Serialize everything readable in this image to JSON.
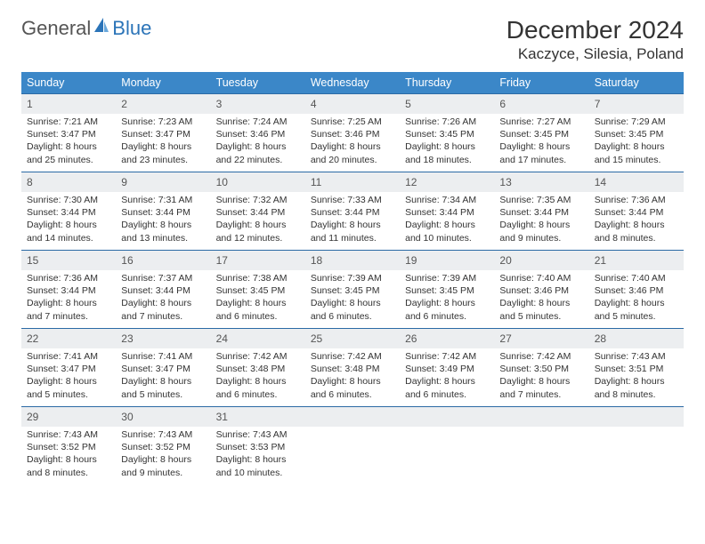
{
  "logo": {
    "general": "General",
    "blue": "Blue",
    "accent_color": "#2b74b8",
    "text_color": "#555555"
  },
  "header": {
    "title": "December 2024",
    "location": "Kaczyce, Silesia, Poland"
  },
  "colors": {
    "header_bg": "#3b87c8",
    "header_text": "#ffffff",
    "daynum_bg": "#eceef0",
    "daynum_border": "#2b6aa5",
    "body_text": "#333333",
    "page_bg": "#ffffff"
  },
  "weekdays": [
    "Sunday",
    "Monday",
    "Tuesday",
    "Wednesday",
    "Thursday",
    "Friday",
    "Saturday"
  ],
  "weeks": [
    [
      {
        "n": "1",
        "sunrise": "Sunrise: 7:21 AM",
        "sunset": "Sunset: 3:47 PM",
        "daylight1": "Daylight: 8 hours",
        "daylight2": "and 25 minutes."
      },
      {
        "n": "2",
        "sunrise": "Sunrise: 7:23 AM",
        "sunset": "Sunset: 3:47 PM",
        "daylight1": "Daylight: 8 hours",
        "daylight2": "and 23 minutes."
      },
      {
        "n": "3",
        "sunrise": "Sunrise: 7:24 AM",
        "sunset": "Sunset: 3:46 PM",
        "daylight1": "Daylight: 8 hours",
        "daylight2": "and 22 minutes."
      },
      {
        "n": "4",
        "sunrise": "Sunrise: 7:25 AM",
        "sunset": "Sunset: 3:46 PM",
        "daylight1": "Daylight: 8 hours",
        "daylight2": "and 20 minutes."
      },
      {
        "n": "5",
        "sunrise": "Sunrise: 7:26 AM",
        "sunset": "Sunset: 3:45 PM",
        "daylight1": "Daylight: 8 hours",
        "daylight2": "and 18 minutes."
      },
      {
        "n": "6",
        "sunrise": "Sunrise: 7:27 AM",
        "sunset": "Sunset: 3:45 PM",
        "daylight1": "Daylight: 8 hours",
        "daylight2": "and 17 minutes."
      },
      {
        "n": "7",
        "sunrise": "Sunrise: 7:29 AM",
        "sunset": "Sunset: 3:45 PM",
        "daylight1": "Daylight: 8 hours",
        "daylight2": "and 15 minutes."
      }
    ],
    [
      {
        "n": "8",
        "sunrise": "Sunrise: 7:30 AM",
        "sunset": "Sunset: 3:44 PM",
        "daylight1": "Daylight: 8 hours",
        "daylight2": "and 14 minutes."
      },
      {
        "n": "9",
        "sunrise": "Sunrise: 7:31 AM",
        "sunset": "Sunset: 3:44 PM",
        "daylight1": "Daylight: 8 hours",
        "daylight2": "and 13 minutes."
      },
      {
        "n": "10",
        "sunrise": "Sunrise: 7:32 AM",
        "sunset": "Sunset: 3:44 PM",
        "daylight1": "Daylight: 8 hours",
        "daylight2": "and 12 minutes."
      },
      {
        "n": "11",
        "sunrise": "Sunrise: 7:33 AM",
        "sunset": "Sunset: 3:44 PM",
        "daylight1": "Daylight: 8 hours",
        "daylight2": "and 11 minutes."
      },
      {
        "n": "12",
        "sunrise": "Sunrise: 7:34 AM",
        "sunset": "Sunset: 3:44 PM",
        "daylight1": "Daylight: 8 hours",
        "daylight2": "and 10 minutes."
      },
      {
        "n": "13",
        "sunrise": "Sunrise: 7:35 AM",
        "sunset": "Sunset: 3:44 PM",
        "daylight1": "Daylight: 8 hours",
        "daylight2": "and 9 minutes."
      },
      {
        "n": "14",
        "sunrise": "Sunrise: 7:36 AM",
        "sunset": "Sunset: 3:44 PM",
        "daylight1": "Daylight: 8 hours",
        "daylight2": "and 8 minutes."
      }
    ],
    [
      {
        "n": "15",
        "sunrise": "Sunrise: 7:36 AM",
        "sunset": "Sunset: 3:44 PM",
        "daylight1": "Daylight: 8 hours",
        "daylight2": "and 7 minutes."
      },
      {
        "n": "16",
        "sunrise": "Sunrise: 7:37 AM",
        "sunset": "Sunset: 3:44 PM",
        "daylight1": "Daylight: 8 hours",
        "daylight2": "and 7 minutes."
      },
      {
        "n": "17",
        "sunrise": "Sunrise: 7:38 AM",
        "sunset": "Sunset: 3:45 PM",
        "daylight1": "Daylight: 8 hours",
        "daylight2": "and 6 minutes."
      },
      {
        "n": "18",
        "sunrise": "Sunrise: 7:39 AM",
        "sunset": "Sunset: 3:45 PM",
        "daylight1": "Daylight: 8 hours",
        "daylight2": "and 6 minutes."
      },
      {
        "n": "19",
        "sunrise": "Sunrise: 7:39 AM",
        "sunset": "Sunset: 3:45 PM",
        "daylight1": "Daylight: 8 hours",
        "daylight2": "and 6 minutes."
      },
      {
        "n": "20",
        "sunrise": "Sunrise: 7:40 AM",
        "sunset": "Sunset: 3:46 PM",
        "daylight1": "Daylight: 8 hours",
        "daylight2": "and 5 minutes."
      },
      {
        "n": "21",
        "sunrise": "Sunrise: 7:40 AM",
        "sunset": "Sunset: 3:46 PM",
        "daylight1": "Daylight: 8 hours",
        "daylight2": "and 5 minutes."
      }
    ],
    [
      {
        "n": "22",
        "sunrise": "Sunrise: 7:41 AM",
        "sunset": "Sunset: 3:47 PM",
        "daylight1": "Daylight: 8 hours",
        "daylight2": "and 5 minutes."
      },
      {
        "n": "23",
        "sunrise": "Sunrise: 7:41 AM",
        "sunset": "Sunset: 3:47 PM",
        "daylight1": "Daylight: 8 hours",
        "daylight2": "and 5 minutes."
      },
      {
        "n": "24",
        "sunrise": "Sunrise: 7:42 AM",
        "sunset": "Sunset: 3:48 PM",
        "daylight1": "Daylight: 8 hours",
        "daylight2": "and 6 minutes."
      },
      {
        "n": "25",
        "sunrise": "Sunrise: 7:42 AM",
        "sunset": "Sunset: 3:48 PM",
        "daylight1": "Daylight: 8 hours",
        "daylight2": "and 6 minutes."
      },
      {
        "n": "26",
        "sunrise": "Sunrise: 7:42 AM",
        "sunset": "Sunset: 3:49 PM",
        "daylight1": "Daylight: 8 hours",
        "daylight2": "and 6 minutes."
      },
      {
        "n": "27",
        "sunrise": "Sunrise: 7:42 AM",
        "sunset": "Sunset: 3:50 PM",
        "daylight1": "Daylight: 8 hours",
        "daylight2": "and 7 minutes."
      },
      {
        "n": "28",
        "sunrise": "Sunrise: 7:43 AM",
        "sunset": "Sunset: 3:51 PM",
        "daylight1": "Daylight: 8 hours",
        "daylight2": "and 8 minutes."
      }
    ],
    [
      {
        "n": "29",
        "sunrise": "Sunrise: 7:43 AM",
        "sunset": "Sunset: 3:52 PM",
        "daylight1": "Daylight: 8 hours",
        "daylight2": "and 8 minutes."
      },
      {
        "n": "30",
        "sunrise": "Sunrise: 7:43 AM",
        "sunset": "Sunset: 3:52 PM",
        "daylight1": "Daylight: 8 hours",
        "daylight2": "and 9 minutes."
      },
      {
        "n": "31",
        "sunrise": "Sunrise: 7:43 AM",
        "sunset": "Sunset: 3:53 PM",
        "daylight1": "Daylight: 8 hours",
        "daylight2": "and 10 minutes."
      },
      {
        "empty": true
      },
      {
        "empty": true
      },
      {
        "empty": true
      },
      {
        "empty": true
      }
    ]
  ]
}
